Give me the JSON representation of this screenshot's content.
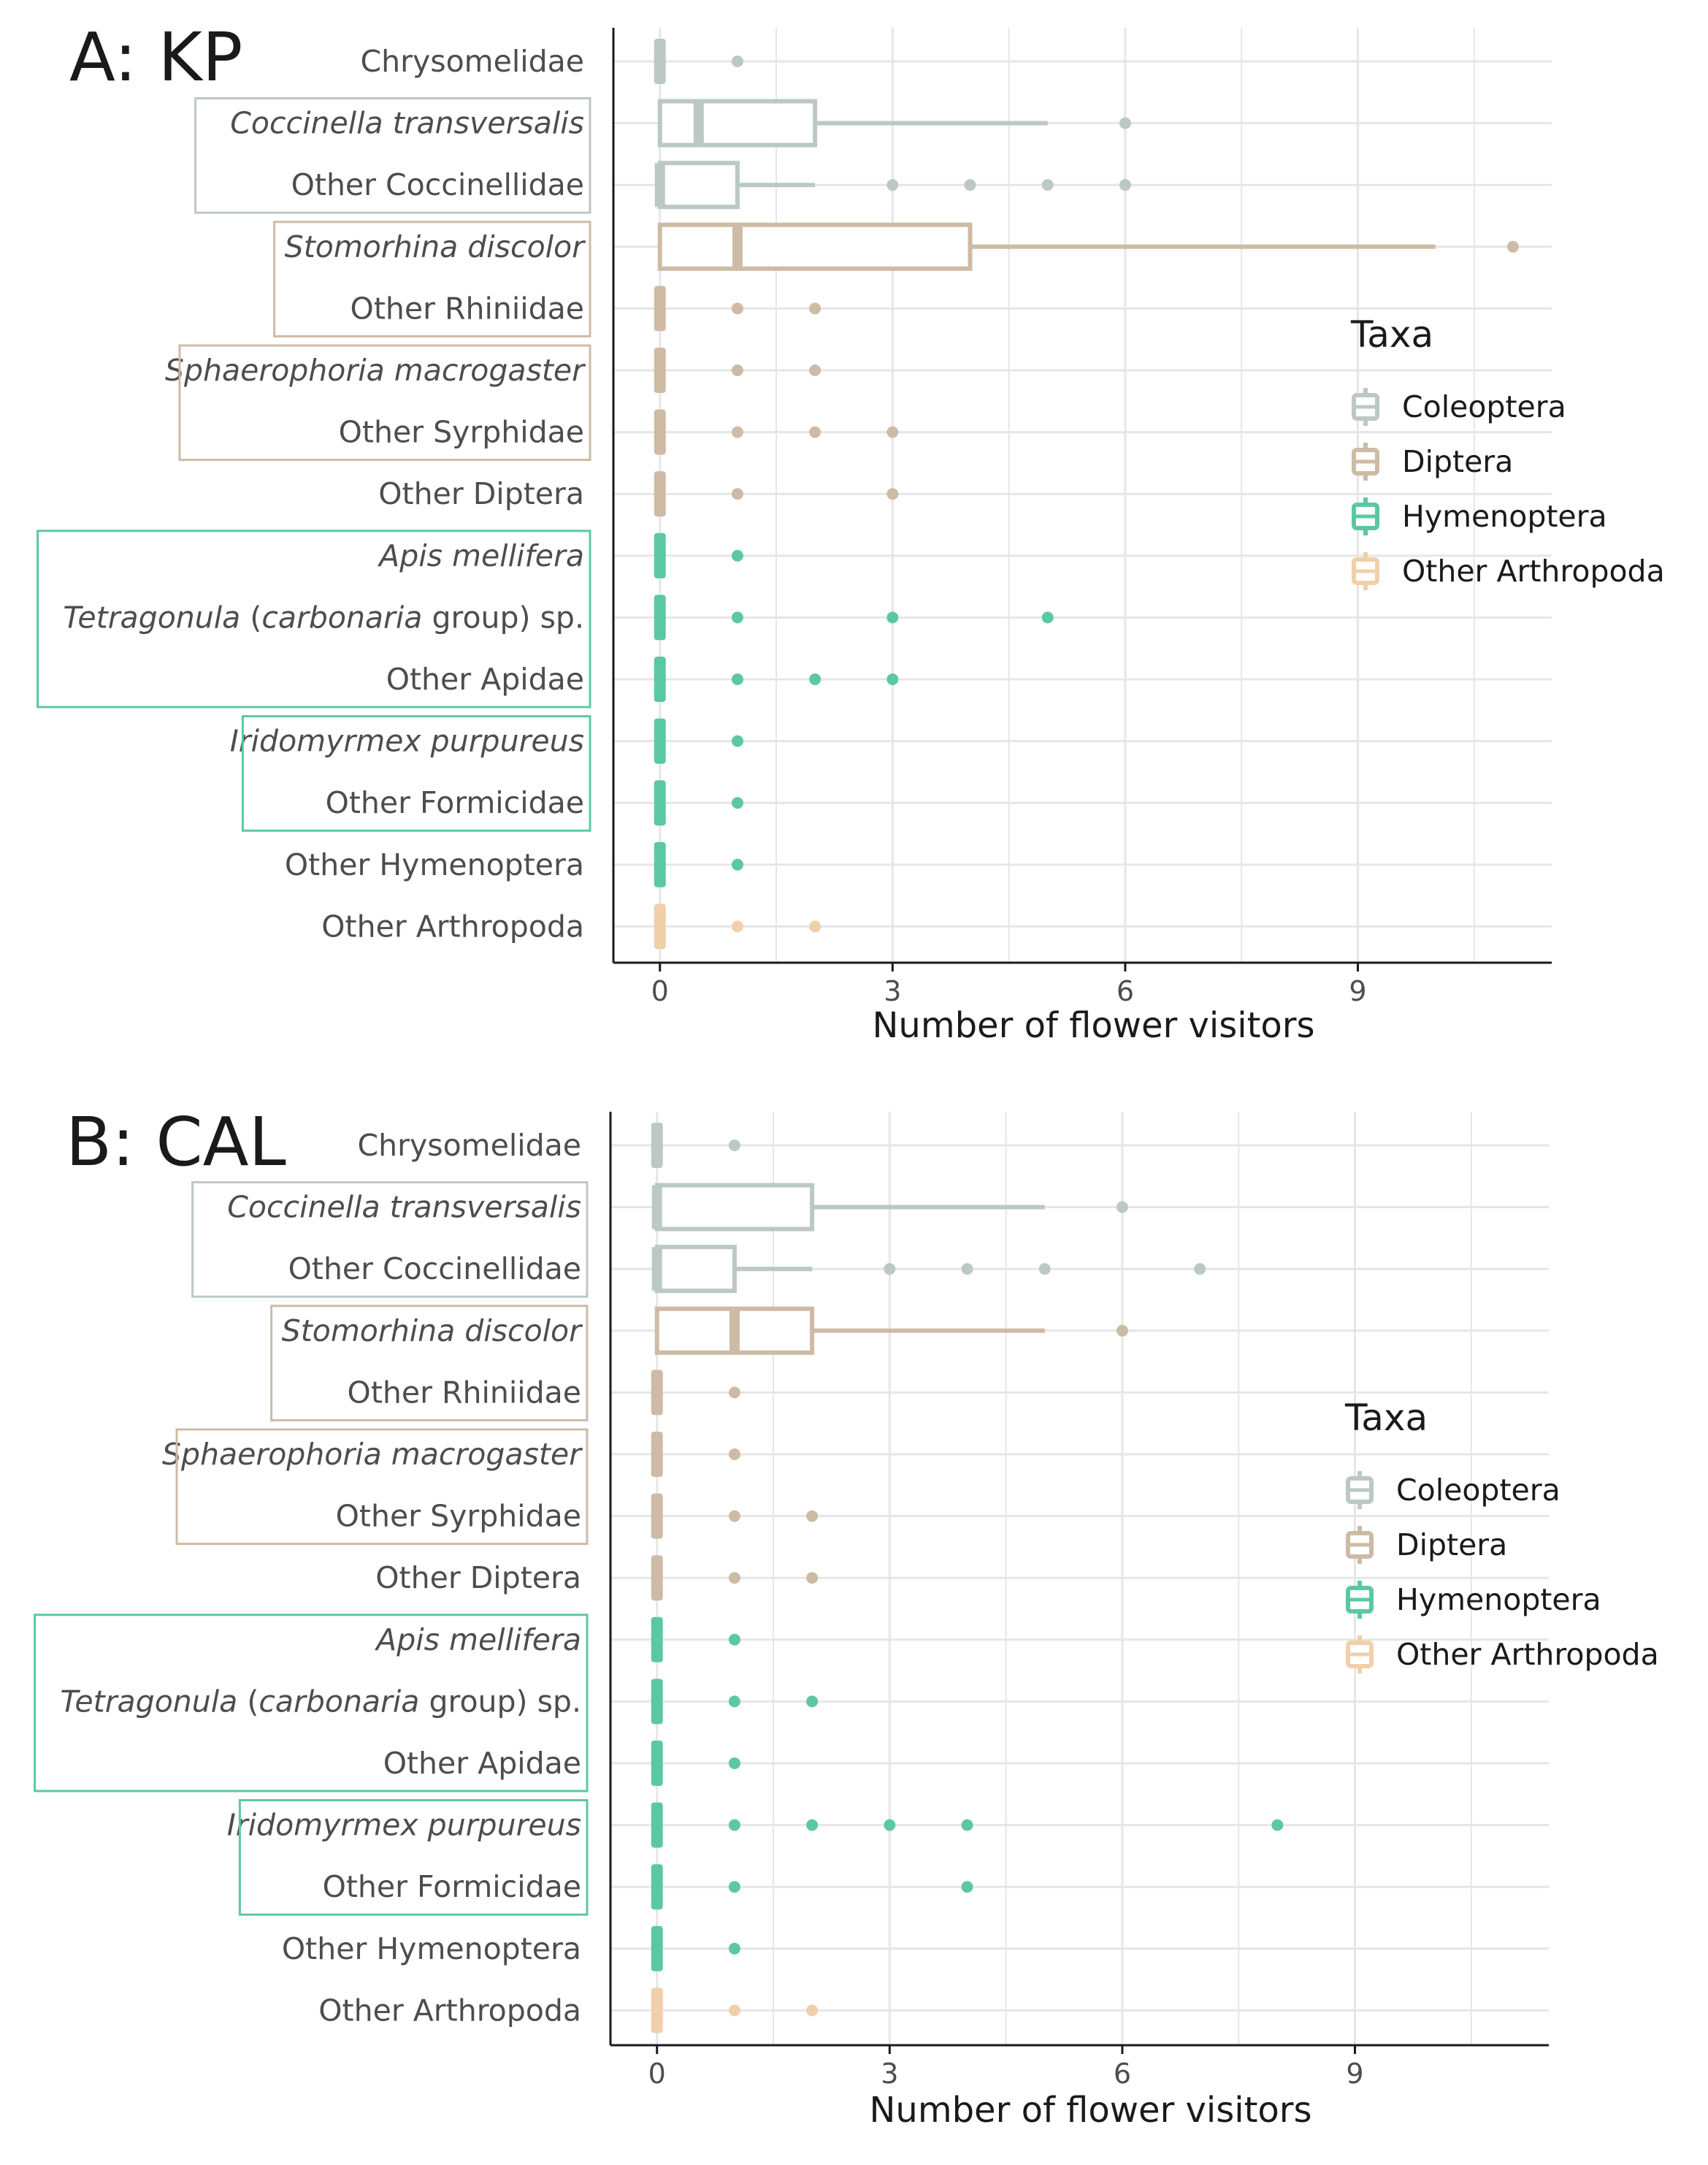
{
  "colors": {
    "Coleoptera": "#bcc8c4",
    "Diptera": "#cdbba6",
    "Hymenoptera": "#5cc8a3",
    "Other Arthropoda": "#f1cfaa",
    "grid": "#e6e6e6",
    "axis": "#1a1a1a"
  },
  "chart_data": [
    {
      "type": "boxplot",
      "title": "A: KP",
      "xlabel": "Number of flower visitors",
      "xlim": [
        -0.6,
        11.5
      ],
      "xticks": [
        0,
        3,
        6,
        9
      ],
      "legend": {
        "title": "Taxa",
        "entries": [
          "Coleoptera",
          "Diptera",
          "Hymenoptera",
          "Other Arthropoda"
        ],
        "placement": "right"
      },
      "categories": [
        {
          "label": "Chrysomelidae",
          "italic": false,
          "taxa": "Coleoptera",
          "q1": 0,
          "median": 0,
          "q3": 0,
          "whisker_low": 0,
          "whisker_high": 0,
          "outliers": [
            1
          ]
        },
        {
          "label": "Coccinella transversalis",
          "italic": true,
          "taxa": "Coleoptera",
          "q1": 0,
          "median": 0.5,
          "q3": 2,
          "whisker_low": 0,
          "whisker_high": 5,
          "outliers": [
            6
          ]
        },
        {
          "label": "Other Coccinellidae",
          "italic": false,
          "taxa": "Coleoptera",
          "q1": 0,
          "median": 0,
          "q3": 1,
          "whisker_low": 0,
          "whisker_high": 2,
          "outliers": [
            3,
            4,
            5,
            6
          ]
        },
        {
          "label": "Stomorhina discolor",
          "italic": true,
          "taxa": "Diptera",
          "q1": 0,
          "median": 1,
          "q3": 4,
          "whisker_low": 0,
          "whisker_high": 10,
          "outliers": [
            11
          ]
        },
        {
          "label": "Other Rhiniidae",
          "italic": false,
          "taxa": "Diptera",
          "q1": 0,
          "median": 0,
          "q3": 0,
          "whisker_low": 0,
          "whisker_high": 0,
          "outliers": [
            1,
            2
          ]
        },
        {
          "label": "Sphaerophoria macrogaster",
          "italic": true,
          "taxa": "Diptera",
          "q1": 0,
          "median": 0,
          "q3": 0,
          "whisker_low": 0,
          "whisker_high": 0,
          "outliers": [
            1,
            2
          ]
        },
        {
          "label": "Other Syrphidae",
          "italic": false,
          "taxa": "Diptera",
          "q1": 0,
          "median": 0,
          "q3": 0,
          "whisker_low": 0,
          "whisker_high": 0,
          "outliers": [
            1,
            2,
            3
          ]
        },
        {
          "label": "Other Diptera",
          "italic": false,
          "taxa": "Diptera",
          "q1": 0,
          "median": 0,
          "q3": 0,
          "whisker_low": 0,
          "whisker_high": 0,
          "outliers": [
            1,
            3
          ]
        },
        {
          "label": "Apis mellifera",
          "italic": true,
          "taxa": "Hymenoptera",
          "q1": 0,
          "median": 0,
          "q3": 0,
          "whisker_low": 0,
          "whisker_high": 0,
          "outliers": [
            1
          ]
        },
        {
          "label_parts": [
            {
              "text": "Tetragonula",
              "italic": true
            },
            {
              "text": " (",
              "italic": false
            },
            {
              "text": "carbonaria",
              "italic": true
            },
            {
              "text": " group) sp.",
              "italic": false
            }
          ],
          "taxa": "Hymenoptera",
          "q1": 0,
          "median": 0,
          "q3": 0,
          "whisker_low": 0,
          "whisker_high": 0,
          "outliers": [
            1,
            3,
            5
          ]
        },
        {
          "label": "Other Apidae",
          "italic": false,
          "taxa": "Hymenoptera",
          "q1": 0,
          "median": 0,
          "q3": 0,
          "whisker_low": 0,
          "whisker_high": 0,
          "outliers": [
            1,
            2,
            3
          ]
        },
        {
          "label": "Iridomyrmex purpureus",
          "italic": true,
          "taxa": "Hymenoptera",
          "q1": 0,
          "median": 0,
          "q3": 0,
          "whisker_low": 0,
          "whisker_high": 0,
          "outliers": [
            1
          ]
        },
        {
          "label": "Other Formicidae",
          "italic": false,
          "taxa": "Hymenoptera",
          "q1": 0,
          "median": 0,
          "q3": 0,
          "whisker_low": 0,
          "whisker_high": 0,
          "outliers": [
            1
          ]
        },
        {
          "label": "Other Hymenoptera",
          "italic": false,
          "taxa": "Hymenoptera",
          "q1": 0,
          "median": 0,
          "q3": 0,
          "whisker_low": 0,
          "whisker_high": 0,
          "outliers": [
            1
          ]
        },
        {
          "label": "Other Arthropoda",
          "italic": false,
          "taxa": "Other Arthropoda",
          "q1": 0,
          "median": 0,
          "q3": 0,
          "whisker_low": 0,
          "whisker_high": 0,
          "outliers": [
            1,
            2
          ]
        }
      ],
      "label_boxes": [
        {
          "from": 1,
          "to": 2,
          "taxa": "Coleoptera"
        },
        {
          "from": 3,
          "to": 4,
          "taxa": "Diptera"
        },
        {
          "from": 5,
          "to": 6,
          "taxa": "Diptera"
        },
        {
          "from": 8,
          "to": 10,
          "taxa": "Hymenoptera"
        },
        {
          "from": 11,
          "to": 12,
          "taxa": "Hymenoptera"
        }
      ]
    },
    {
      "type": "boxplot",
      "title": "B: CAL",
      "xlabel": "Number of flower visitors",
      "xlim": [
        -0.6,
        11.5
      ],
      "xticks": [
        0,
        3,
        6,
        9
      ],
      "legend": {
        "title": "Taxa",
        "entries": [
          "Coleoptera",
          "Diptera",
          "Hymenoptera",
          "Other Arthropoda"
        ],
        "placement": "right"
      },
      "categories": [
        {
          "label": "Chrysomelidae",
          "italic": false,
          "taxa": "Coleoptera",
          "q1": 0,
          "median": 0,
          "q3": 0,
          "whisker_low": 0,
          "whisker_high": 0,
          "outliers": [
            1
          ]
        },
        {
          "label": "Coccinella transversalis",
          "italic": true,
          "taxa": "Coleoptera",
          "q1": 0,
          "median": 0,
          "q3": 2,
          "whisker_low": 0,
          "whisker_high": 5,
          "outliers": [
            6
          ]
        },
        {
          "label": "Other Coccinellidae",
          "italic": false,
          "taxa": "Coleoptera",
          "q1": 0,
          "median": 0,
          "q3": 1,
          "whisker_low": 0,
          "whisker_high": 2,
          "outliers": [
            3,
            4,
            5,
            7
          ]
        },
        {
          "label": "Stomorhina discolor",
          "italic": true,
          "taxa": "Diptera",
          "q1": 0,
          "median": 1,
          "q3": 2,
          "whisker_low": 0,
          "whisker_high": 5,
          "outliers": [
            6
          ]
        },
        {
          "label": "Other Rhiniidae",
          "italic": false,
          "taxa": "Diptera",
          "q1": 0,
          "median": 0,
          "q3": 0,
          "whisker_low": 0,
          "whisker_high": 0,
          "outliers": [
            1
          ]
        },
        {
          "label": "Sphaerophoria macrogaster",
          "italic": true,
          "taxa": "Diptera",
          "q1": 0,
          "median": 0,
          "q3": 0,
          "whisker_low": 0,
          "whisker_high": 0,
          "outliers": [
            1
          ]
        },
        {
          "label": "Other Syrphidae",
          "italic": false,
          "taxa": "Diptera",
          "q1": 0,
          "median": 0,
          "q3": 0,
          "whisker_low": 0,
          "whisker_high": 0,
          "outliers": [
            1,
            2
          ]
        },
        {
          "label": "Other Diptera",
          "italic": false,
          "taxa": "Diptera",
          "q1": 0,
          "median": 0,
          "q3": 0,
          "whisker_low": 0,
          "whisker_high": 0,
          "outliers": [
            1,
            2
          ]
        },
        {
          "label": "Apis mellifera",
          "italic": true,
          "taxa": "Hymenoptera",
          "q1": 0,
          "median": 0,
          "q3": 0,
          "whisker_low": 0,
          "whisker_high": 0,
          "outliers": [
            1
          ]
        },
        {
          "label_parts": [
            {
              "text": "Tetragonula",
              "italic": true
            },
            {
              "text": " (",
              "italic": false
            },
            {
              "text": "carbonaria",
              "italic": true
            },
            {
              "text": " group) sp.",
              "italic": false
            }
          ],
          "taxa": "Hymenoptera",
          "q1": 0,
          "median": 0,
          "q3": 0,
          "whisker_low": 0,
          "whisker_high": 0,
          "outliers": [
            1,
            2
          ]
        },
        {
          "label": "Other Apidae",
          "italic": false,
          "taxa": "Hymenoptera",
          "q1": 0,
          "median": 0,
          "q3": 0,
          "whisker_low": 0,
          "whisker_high": 0,
          "outliers": [
            1
          ]
        },
        {
          "label": "Iridomyrmex purpureus",
          "italic": true,
          "taxa": "Hymenoptera",
          "q1": 0,
          "median": 0,
          "q3": 0,
          "whisker_low": 0,
          "whisker_high": 0,
          "outliers": [
            1,
            2,
            3,
            4,
            8
          ]
        },
        {
          "label": "Other Formicidae",
          "italic": false,
          "taxa": "Hymenoptera",
          "q1": 0,
          "median": 0,
          "q3": 0,
          "whisker_low": 0,
          "whisker_high": 0,
          "outliers": [
            1,
            4
          ]
        },
        {
          "label": "Other Hymenoptera",
          "italic": false,
          "taxa": "Hymenoptera",
          "q1": 0,
          "median": 0,
          "q3": 0,
          "whisker_low": 0,
          "whisker_high": 0,
          "outliers": [
            1
          ]
        },
        {
          "label": "Other Arthropoda",
          "italic": false,
          "taxa": "Other Arthropoda",
          "q1": 0,
          "median": 0,
          "q3": 0,
          "whisker_low": 0,
          "whisker_high": 0,
          "outliers": [
            1,
            2
          ]
        }
      ],
      "label_boxes": [
        {
          "from": 1,
          "to": 2,
          "taxa": "Coleoptera"
        },
        {
          "from": 3,
          "to": 4,
          "taxa": "Diptera"
        },
        {
          "from": 5,
          "to": 6,
          "taxa": "Diptera"
        },
        {
          "from": 8,
          "to": 10,
          "taxa": "Hymenoptera"
        },
        {
          "from": 11,
          "to": 12,
          "taxa": "Hymenoptera"
        }
      ]
    }
  ]
}
